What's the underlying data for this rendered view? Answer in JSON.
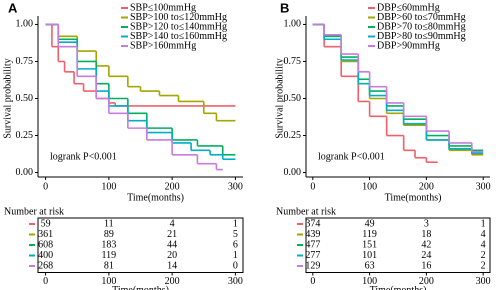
{
  "chart_data": [
    {
      "type": "line",
      "step": true,
      "panel_label": "A",
      "ylabel": "Survival probability",
      "xlabel": "Time(months)",
      "annotation": "logrank P<0.001",
      "legend": "top-right",
      "xlim": [
        -12,
        312
      ],
      "xticks": [
        0,
        100,
        200,
        300
      ],
      "ylim": [
        -0.03,
        1.03
      ],
      "yticks": [
        {
          "value": 0,
          "label": "0.00"
        },
        {
          "value": 0.25,
          "label": "0.25"
        },
        {
          "value": 0.5,
          "label": "0.50"
        },
        {
          "value": 0.75,
          "label": "0.75"
        },
        {
          "value": 1,
          "label": "1.00"
        }
      ],
      "series": [
        {
          "name": "SBP≤100mmHg",
          "color": "#f0606a",
          "x": [
            0,
            10,
            20,
            30,
            45,
            60,
            80,
            100,
            110,
            300
          ],
          "values": [
            1,
            0.85,
            0.75,
            0.68,
            0.6,
            0.55,
            0.5,
            0.47,
            0.45,
            0.45
          ]
        },
        {
          "name": "SBP>100 to≤120mmHg",
          "color": "#a3a500",
          "x": [
            0,
            20,
            50,
            80,
            100,
            130,
            150,
            180,
            210,
            250,
            270,
            300
          ],
          "values": [
            1,
            0.92,
            0.82,
            0.72,
            0.65,
            0.58,
            0.55,
            0.52,
            0.48,
            0.4,
            0.35,
            0.35
          ]
        },
        {
          "name": "SBP>120 to≤140mmHg",
          "color": "#00b060",
          "x": [
            0,
            20,
            50,
            80,
            100,
            130,
            160,
            200,
            240,
            280,
            300
          ],
          "values": [
            1,
            0.9,
            0.75,
            0.6,
            0.5,
            0.4,
            0.3,
            0.22,
            0.18,
            0.12,
            0.12
          ]
        },
        {
          "name": "SBP>140 to≤160mmHg",
          "color": "#00aec8",
          "x": [
            0,
            20,
            50,
            80,
            100,
            130,
            160,
            200,
            230,
            260,
            280,
            300
          ],
          "values": [
            1,
            0.88,
            0.7,
            0.55,
            0.45,
            0.35,
            0.27,
            0.2,
            0.15,
            0.12,
            0.09,
            0.09
          ]
        },
        {
          "name": "SBP>160mmHg",
          "color": "#c77cde",
          "x": [
            0,
            20,
            50,
            80,
            100,
            130,
            160,
            200,
            240,
            270,
            280
          ],
          "values": [
            1,
            0.85,
            0.65,
            0.5,
            0.4,
            0.3,
            0.22,
            0.12,
            0.06,
            0.02,
            0.02
          ]
        }
      ],
      "risk_table": {
        "title": "Number at risk",
        "xlabel": "Time(months)",
        "rows": [
          [
            59,
            11,
            4,
            1
          ],
          [
            361,
            89,
            21,
            5
          ],
          [
            608,
            183,
            44,
            6
          ],
          [
            400,
            119,
            20,
            1
          ],
          [
            268,
            81,
            14,
            0
          ]
        ]
      }
    },
    {
      "type": "line",
      "step": true,
      "panel_label": "B",
      "ylabel": "Survival probability",
      "xlabel": "Time(months)",
      "annotation": "logrank P<0.001",
      "legend": "top-right",
      "xlim": [
        -12,
        312
      ],
      "xticks": [
        0,
        100,
        200,
        300
      ],
      "ylim": [
        -0.03,
        1.03
      ],
      "yticks": [
        {
          "value": 0,
          "label": "0.00"
        },
        {
          "value": 0.25,
          "label": "0.25"
        },
        {
          "value": 0.5,
          "label": "0.50"
        },
        {
          "value": 0.75,
          "label": "0.75"
        },
        {
          "value": 1,
          "label": "1.00"
        }
      ],
      "series": [
        {
          "name": "DBP≤60mmHg",
          "color": "#f0606a",
          "x": [
            0,
            20,
            50,
            80,
            100,
            130,
            160,
            180,
            200,
            220
          ],
          "values": [
            1,
            0.85,
            0.65,
            0.48,
            0.38,
            0.25,
            0.15,
            0.1,
            0.07,
            0.07
          ]
        },
        {
          "name": "DBP>60 to≤70mmHg",
          "color": "#a3a500",
          "x": [
            0,
            20,
            50,
            80,
            100,
            130,
            160,
            200,
            240,
            280,
            300
          ],
          "values": [
            1,
            0.9,
            0.75,
            0.6,
            0.5,
            0.4,
            0.32,
            0.22,
            0.15,
            0.12,
            0.12
          ]
        },
        {
          "name": "DBP>70 to≤80mmHg",
          "color": "#00b060",
          "x": [
            0,
            20,
            50,
            80,
            100,
            130,
            160,
            200,
            240,
            280,
            300
          ],
          "values": [
            1,
            0.92,
            0.78,
            0.63,
            0.55,
            0.45,
            0.36,
            0.25,
            0.18,
            0.15,
            0.15
          ]
        },
        {
          "name": "DBP>80 to≤90mmHg",
          "color": "#00aec8",
          "x": [
            0,
            20,
            50,
            80,
            100,
            130,
            160,
            200,
            240,
            280,
            300
          ],
          "values": [
            1,
            0.9,
            0.76,
            0.6,
            0.52,
            0.42,
            0.33,
            0.22,
            0.16,
            0.13,
            0.13
          ]
        },
        {
          "name": "DBP>90mmHg",
          "color": "#c77cde",
          "x": [
            0,
            20,
            50,
            80,
            100,
            130,
            160,
            200,
            240,
            280,
            300
          ],
          "values": [
            1,
            0.93,
            0.8,
            0.68,
            0.58,
            0.47,
            0.38,
            0.28,
            0.2,
            0.14,
            0.14
          ]
        }
      ],
      "risk_table": {
        "title": "Number at risk",
        "xlabel": "Time(months)",
        "rows": [
          [
            374,
            49,
            3,
            1
          ],
          [
            439,
            119,
            18,
            4
          ],
          [
            477,
            151,
            42,
            4
          ],
          [
            277,
            101,
            24,
            2
          ],
          [
            129,
            63,
            16,
            2
          ]
        ]
      }
    }
  ]
}
